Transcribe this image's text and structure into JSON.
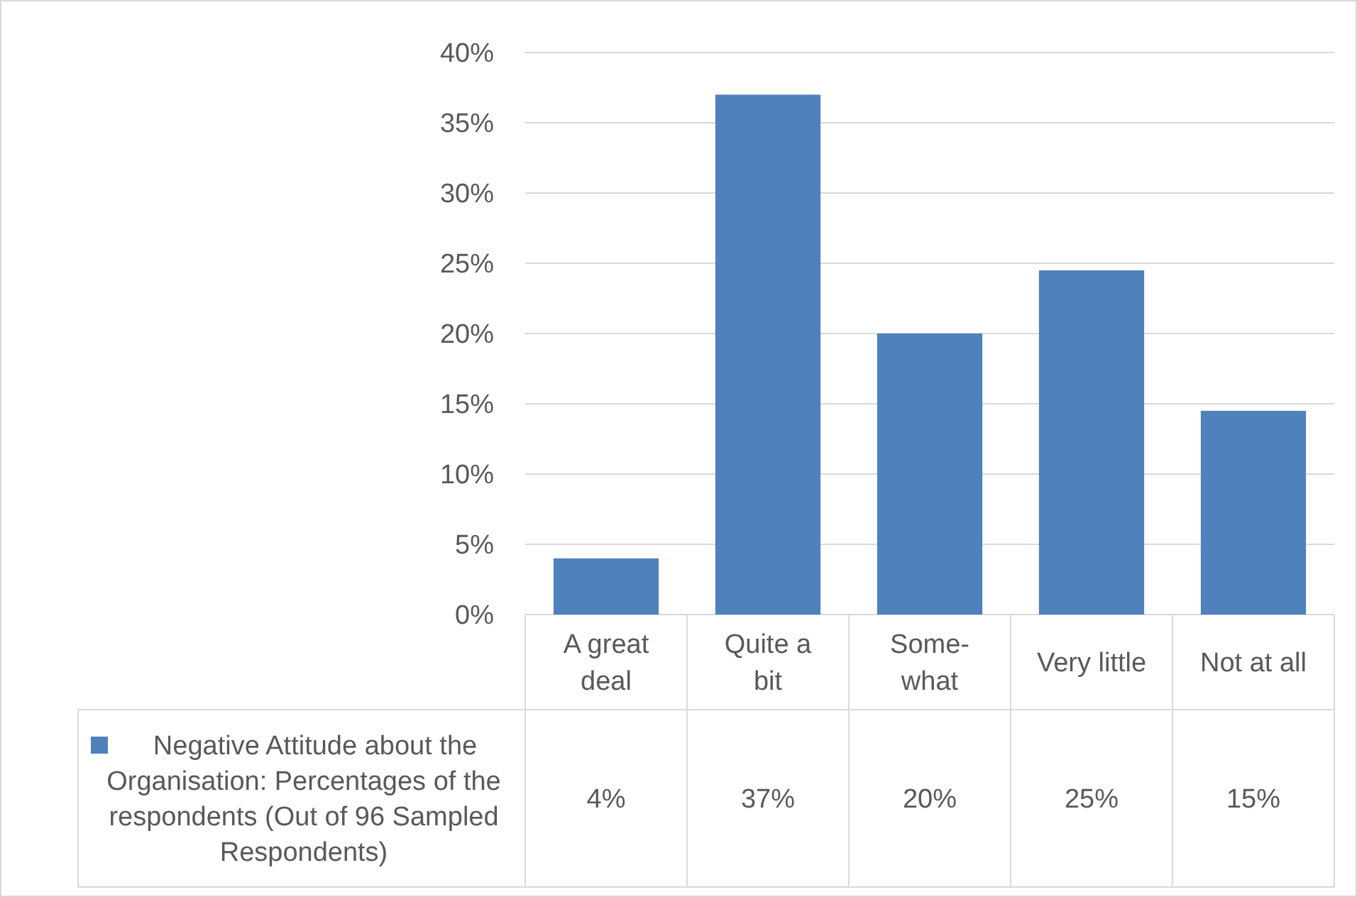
{
  "chart_data": {
    "type": "bar",
    "categories": [
      "A great deal",
      "Quite a bit",
      "Some-what",
      "Very little",
      "Not at all"
    ],
    "series": [
      {
        "name": "Negative Attitude about the Organisation: Percentages of the respondents (Out of 96 Sampled Respondents)",
        "color": "#4f81bd",
        "values": [
          4,
          37,
          20,
          24.5,
          14.5
        ],
        "value_labels": [
          "4%",
          "37%",
          "20%",
          "25%",
          "15%"
        ]
      }
    ],
    "ylim": [
      0,
      40
    ],
    "yticks": [
      {
        "value": 0,
        "label": "0%"
      },
      {
        "value": 5,
        "label": "5%"
      },
      {
        "value": 10,
        "label": "10%"
      },
      {
        "value": 15,
        "label": "15%"
      },
      {
        "value": 20,
        "label": "20%"
      },
      {
        "value": 25,
        "label": "25%"
      },
      {
        "value": 30,
        "label": "30%"
      },
      {
        "value": 35,
        "label": "35%"
      },
      {
        "value": 40,
        "label": "40%"
      }
    ],
    "grid": "y",
    "legend": "bottom"
  }
}
